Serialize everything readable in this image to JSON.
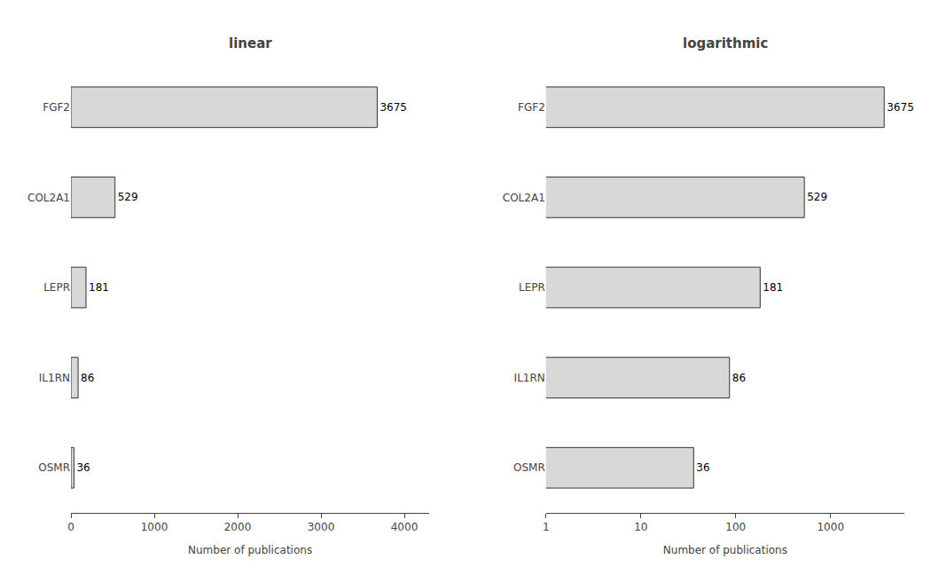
{
  "chart_data": [
    {
      "type": "bar",
      "title": "linear",
      "orientation": "horizontal",
      "categories": [
        "FGF2",
        "COL2A1",
        "LEPR",
        "IL1RN",
        "OSMR"
      ],
      "values": [
        3675,
        529,
        181,
        86,
        36
      ],
      "color": "#d8d8d8",
      "xlabel": "Number of publications",
      "xlim": [
        0,
        4300
      ],
      "xticks": [
        0,
        1000,
        2000,
        3000,
        4000
      ],
      "data_labels": true,
      "grid": false
    },
    {
      "type": "bar",
      "title": "logarithmic",
      "orientation": "horizontal",
      "categories": [
        "FGF2",
        "COL2A1",
        "LEPR",
        "IL1RN",
        "OSMR"
      ],
      "values": [
        3675,
        529,
        181,
        86,
        36
      ],
      "color": "#d8d8d8",
      "xlabel": "Number of publications",
      "log": "x",
      "xlim": [
        1,
        6000
      ],
      "xticks": [
        1,
        10,
        100,
        1000
      ],
      "data_labels": true,
      "grid": false
    }
  ]
}
